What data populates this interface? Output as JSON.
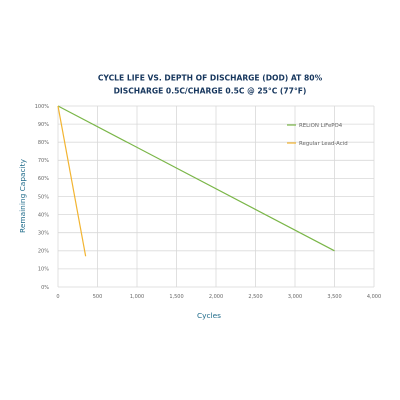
{
  "chart_data": {
    "type": "line",
    "title_line1": "CYCLE LIFE VS. DEPTH OF DISCHARGE (DOD) AT 80%",
    "title_line2": "DISCHARGE 0.5C/CHARGE 0.5C @ 25°C (77°F)",
    "xlabel": "Cycles",
    "ylabel": "Remaining Capacity",
    "xlim": [
      0,
      4000
    ],
    "ylim": [
      0,
      100
    ],
    "x_ticks": [
      0,
      500,
      1000,
      1500,
      2000,
      2500,
      3000,
      3500,
      4000
    ],
    "x_tick_labels": [
      "0",
      "500",
      "1,000",
      "1,500",
      "2,000",
      "2,500",
      "3,000",
      "3,500",
      "4,000"
    ],
    "y_ticks": [
      0,
      10,
      20,
      30,
      40,
      50,
      60,
      70,
      80,
      90,
      100
    ],
    "y_tick_labels": [
      "0%",
      "10%",
      "20%",
      "30%",
      "40%",
      "50%",
      "60%",
      "70%",
      "80%",
      "90%",
      "100%"
    ],
    "grid": true,
    "legend_position": "right",
    "series": [
      {
        "name": "RELiON LiFePO4",
        "color": "#7ab648",
        "x": [
          0,
          3500
        ],
        "y": [
          100,
          20
        ]
      },
      {
        "name": "Regular Lead-Acid",
        "color": "#f2b431",
        "x": [
          0,
          350
        ],
        "y": [
          100,
          17
        ]
      }
    ]
  }
}
